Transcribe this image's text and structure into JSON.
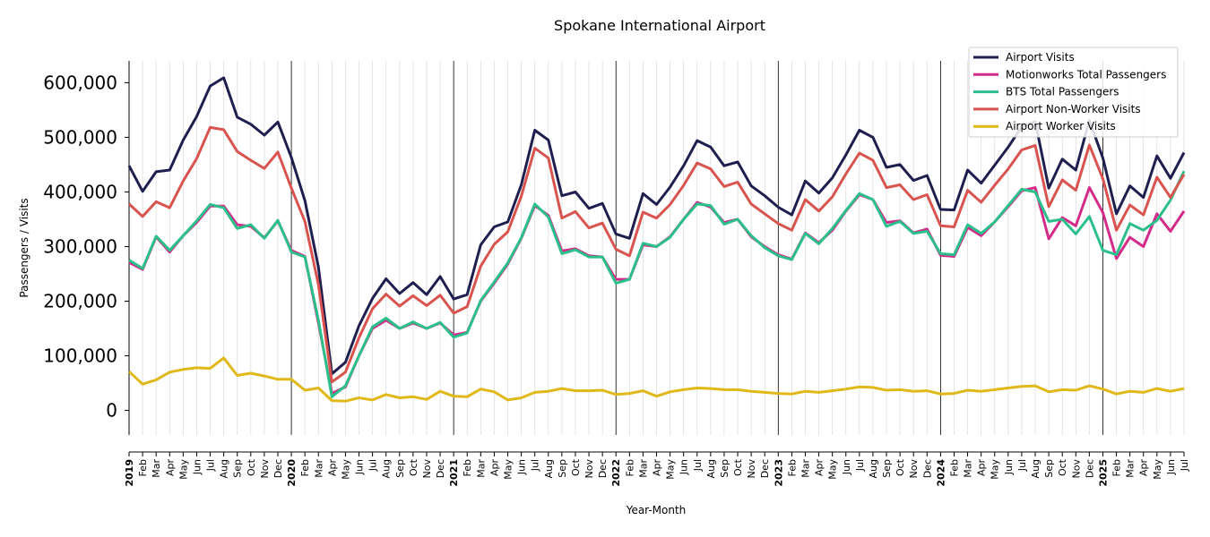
{
  "chart_data": {
    "type": "line",
    "title": "Spokane International Airport",
    "xlabel": "Year-Month",
    "ylabel": "Passengers / Visits",
    "ylim": [
      -45000,
      640000
    ],
    "yticks": [
      0,
      100000,
      200000,
      300000,
      400000,
      500000,
      600000
    ],
    "ytick_labels": [
      "0",
      "100,000",
      "200,000",
      "300,000",
      "400,000",
      "500,000",
      "600,000"
    ],
    "grid": "vertical monthly gridlines",
    "legend": "top-right",
    "x_start": "2019-01",
    "x": [
      "2019-01",
      "2019-02",
      "2019-03",
      "2019-04",
      "2019-05",
      "2019-06",
      "2019-07",
      "2019-08",
      "2019-09",
      "2019-10",
      "2019-11",
      "2019-12",
      "2020-01",
      "2020-02",
      "2020-03",
      "2020-04",
      "2020-05",
      "2020-06",
      "2020-07",
      "2020-08",
      "2020-09",
      "2020-10",
      "2020-11",
      "2020-12",
      "2021-01",
      "2021-02",
      "2021-03",
      "2021-04",
      "2021-05",
      "2021-06",
      "2021-07",
      "2021-08",
      "2021-09",
      "2021-10",
      "2021-11",
      "2021-12",
      "2022-01",
      "2022-02",
      "2022-03",
      "2022-04",
      "2022-05",
      "2022-06",
      "2022-07",
      "2022-08",
      "2022-09",
      "2022-10",
      "2022-11",
      "2022-12",
      "2023-01",
      "2023-02",
      "2023-03",
      "2023-04",
      "2023-05",
      "2023-06",
      "2023-07",
      "2023-08",
      "2023-09",
      "2023-10",
      "2023-11",
      "2023-12",
      "2024-01",
      "2024-02",
      "2024-03",
      "2024-04",
      "2024-05",
      "2024-06",
      "2024-07",
      "2024-08",
      "2024-09",
      "2024-10",
      "2024-11",
      "2024-12",
      "2025-01",
      "2025-02",
      "2025-03",
      "2025-04",
      "2025-05",
      "2025-06",
      "2025-07"
    ],
    "month_labels": [
      "2019",
      "Feb",
      "Mar",
      "Apr",
      "May",
      "Jun",
      "Jul",
      "Aug",
      "Sep",
      "Oct",
      "Nov",
      "Dec",
      "2020",
      "Feb",
      "Mar",
      "Apr",
      "May",
      "Jun",
      "Jul",
      "Aug",
      "Sep",
      "Oct",
      "Nov",
      "Dec",
      "2021",
      "Feb",
      "Mar",
      "Apr",
      "May",
      "Jun",
      "Jul",
      "Aug",
      "Sep",
      "Oct",
      "Nov",
      "Dec",
      "2022",
      "Feb",
      "Mar",
      "Apr",
      "May",
      "Jun",
      "Jul",
      "Aug",
      "Sep",
      "Oct",
      "Nov",
      "Dec",
      "2023",
      "Feb",
      "Mar",
      "Apr",
      "May",
      "Jun",
      "Jul",
      "Aug",
      "Sep",
      "Oct",
      "Nov",
      "Dec",
      "2024",
      "Feb",
      "Mar",
      "Apr",
      "May",
      "Jun",
      "Jul",
      "Aug",
      "Sep",
      "Oct",
      "Nov",
      "Dec",
      "2025",
      "Feb",
      "Mar",
      "Apr",
      "May",
      "Jun",
      "Jul"
    ],
    "series": [
      {
        "name": "Airport Visits",
        "color": "#1f1f4f",
        "values": [
          448000,
          401000,
          437000,
          440000,
          495000,
          538000,
          594000,
          609000,
          537000,
          524000,
          504000,
          528000,
          463000,
          384000,
          262000,
          67000,
          88000,
          155000,
          205000,
          241000,
          214000,
          234000,
          212000,
          245000,
          204000,
          212000,
          303000,
          336000,
          345000,
          413000,
          513000,
          495000,
          393000,
          400000,
          370000,
          379000,
          323000,
          315000,
          397000,
          377000,
          409000,
          448000,
          494000,
          482000,
          448000,
          455000,
          411000,
          393000,
          372000,
          358000,
          420000,
          398000,
          426000,
          468000,
          513000,
          500000,
          445000,
          450000,
          421000,
          430000,
          368000,
          367000,
          440000,
          416000,
          449000,
          482000,
          519000,
          529000,
          407000,
          460000,
          440000,
          531000,
          462000,
          360000,
          411000,
          390000,
          466000,
          425000,
          472000
        ]
      },
      {
        "name": "Motionworks Total Passengers",
        "color": "#d42b8a",
        "values": [
          271000,
          258000,
          318000,
          290000,
          320000,
          344000,
          374000,
          374000,
          340000,
          337000,
          316000,
          347000,
          293000,
          282000,
          160000,
          31000,
          43000,
          100000,
          150000,
          165000,
          150000,
          160000,
          150000,
          160000,
          138000,
          143000,
          200000,
          233000,
          268000,
          315000,
          375000,
          357000,
          292000,
          296000,
          283000,
          281000,
          240000,
          240000,
          303000,
          300000,
          318000,
          350000,
          381000,
          372000,
          344000,
          350000,
          318000,
          300000,
          285000,
          277000,
          325000,
          307000,
          330000,
          365000,
          395000,
          386000,
          344000,
          347000,
          325000,
          332000,
          284000,
          282000,
          335000,
          320000,
          345000,
          373000,
          402000,
          408000,
          314000,
          353000,
          338000,
          408000,
          362000,
          278000,
          317000,
          300000,
          360000,
          328000,
          365000
        ]
      },
      {
        "name": "BTS Total Passengers",
        "color": "#2bbf8a",
        "values": [
          275000,
          260000,
          319000,
          293000,
          320000,
          347000,
          377000,
          371000,
          333000,
          340000,
          315000,
          348000,
          290000,
          281000,
          165000,
          25000,
          45000,
          100000,
          153000,
          169000,
          150000,
          162000,
          150000,
          161000,
          134000,
          142000,
          201000,
          235000,
          270000,
          316000,
          378000,
          354000,
          287000,
          294000,
          281000,
          281000,
          233000,
          240000,
          306000,
          300000,
          317000,
          350000,
          378000,
          375000,
          341000,
          350000,
          320000,
          298000,
          283000,
          276000,
          324000,
          305000,
          333000,
          366000,
          397000,
          386000,
          337000,
          346000,
          324000,
          328000,
          287000,
          285000,
          340000,
          324000,
          345000,
          375000,
          405000,
          400000,
          346000,
          350000,
          323000,
          355000,
          293000,
          285000,
          342000,
          330000,
          348000,
          385000,
          438000
        ]
      },
      {
        "name": "Airport Non-Worker Visits",
        "color": "#d9534f",
        "values": [
          378000,
          355000,
          382000,
          371000,
          420000,
          461000,
          518000,
          514000,
          474000,
          458000,
          443000,
          473000,
          407000,
          346000,
          230000,
          52000,
          70000,
          133000,
          186000,
          213000,
          191000,
          210000,
          192000,
          211000,
          178000,
          190000,
          264000,
          304000,
          327000,
          392000,
          480000,
          462000,
          352000,
          364000,
          334000,
          343000,
          295000,
          283000,
          363000,
          352000,
          377000,
          412000,
          453000,
          442000,
          410000,
          418000,
          378000,
          360000,
          342000,
          330000,
          386000,
          365000,
          391000,
          433000,
          471000,
          458000,
          408000,
          413000,
          386000,
          395000,
          338000,
          336000,
          403000,
          381000,
          412000,
          442000,
          477000,
          485000,
          373000,
          422000,
          403000,
          486000,
          424000,
          330000,
          376000,
          358000,
          427000,
          390000,
          432000
        ]
      },
      {
        "name": "Airport Worker Visits",
        "color": "#e0b81a",
        "values": [
          71000,
          48000,
          56000,
          70000,
          75000,
          78000,
          77000,
          96000,
          64000,
          68000,
          63000,
          57000,
          57000,
          37000,
          41000,
          18000,
          17000,
          23000,
          19000,
          29000,
          23000,
          25000,
          20000,
          35000,
          26000,
          25000,
          39000,
          34000,
          19000,
          23000,
          33000,
          35000,
          40000,
          36000,
          36000,
          37000,
          29000,
          31000,
          36000,
          26000,
          34000,
          38000,
          41000,
          40000,
          38000,
          38000,
          35000,
          33000,
          31000,
          30000,
          35000,
          33000,
          36000,
          39000,
          43000,
          42000,
          37000,
          38000,
          35000,
          36000,
          30000,
          31000,
          37000,
          35000,
          38000,
          41000,
          44000,
          45000,
          34000,
          38000,
          37000,
          45000,
          39000,
          30000,
          35000,
          33000,
          40000,
          35000,
          40000
        ]
      }
    ]
  }
}
